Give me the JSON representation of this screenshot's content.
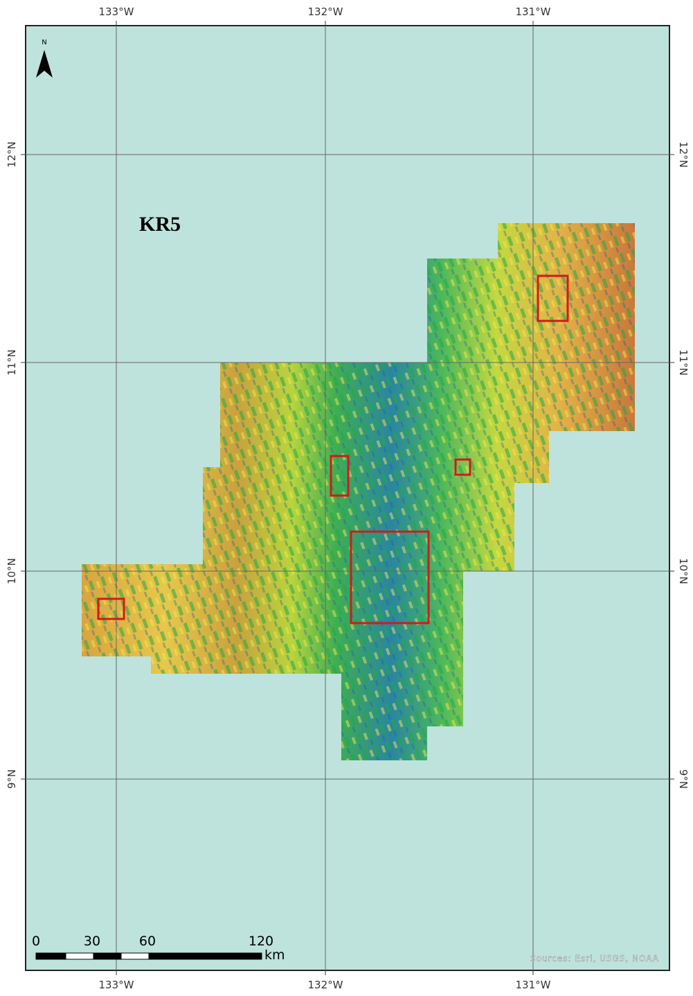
{
  "map": {
    "title": "KR5",
    "north": "N",
    "longitudes": [
      "133°W",
      "132°W",
      "131°W"
    ],
    "latitudes": [
      "12°N",
      "11°N",
      "10°N",
      "9°N"
    ],
    "scale_bar": {
      "labels": [
        "0",
        "30",
        "60",
        "120"
      ],
      "unit": "km"
    },
    "sources": "Sources: Esri, USGS, NOAA"
  }
}
